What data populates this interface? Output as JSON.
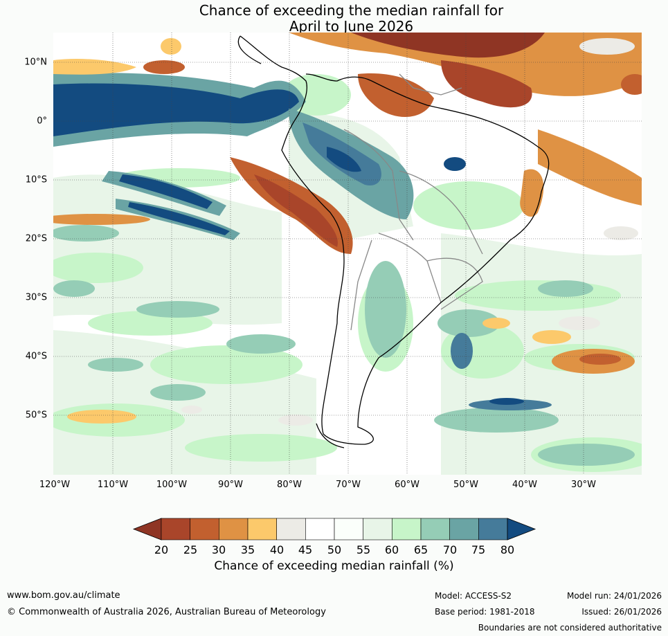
{
  "title": {
    "line1": "Chance of exceeding the median rainfall for",
    "line2": "April to June 2026"
  },
  "map": {
    "latitude_labels": [
      "10°N",
      "0°",
      "10°S",
      "20°S",
      "30°S",
      "40°S",
      "50°S"
    ],
    "longitude_labels": [
      "120°W",
      "110°W",
      "100°W",
      "90°W",
      "80°W",
      "70°W",
      "60°W",
      "50°W",
      "40°W",
      "30°W"
    ],
    "gridlines": true,
    "region": "South America and adjacent Pacific / Atlantic oceans"
  },
  "colorbar": {
    "title": "Chance of exceeding median rainfall (%)",
    "tick_labels": [
      "20",
      "25",
      "30",
      "35",
      "40",
      "45",
      "50",
      "55",
      "60",
      "65",
      "70",
      "75",
      "80"
    ],
    "colors": [
      "#a9452a",
      "#c2602f",
      "#df9244",
      "#fcc96b",
      "#ecebe6",
      "#ffffff",
      "#fbfffb",
      "#e8f5e8",
      "#c7f5c9",
      "#95cdb6",
      "#6aa4a4",
      "#457b9a"
    ],
    "under_color": "#8f3524",
    "over_color": "#134b80"
  },
  "footer": {
    "website": "www.bom.gov.au/climate",
    "copyright": "© Commonwealth of Australia 2026, Australian Bureau of Meteorology",
    "model": "Model: ACCESS-S2",
    "base_period": "Base period: 1981-2018",
    "model_run": "Model run: 24/01/2026",
    "issued": "Issued: 26/01/2026",
    "disclaimer": "Boundaries are not considered authoritative"
  }
}
